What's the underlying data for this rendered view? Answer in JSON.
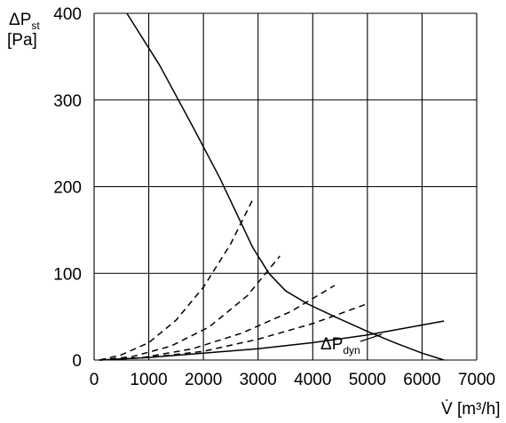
{
  "chart_data": {
    "type": "line",
    "xlabel": "V̇ [m³/h]",
    "ylabel": {
      "main": "ΔP",
      "sub": "st",
      "unit": "[Pa]"
    },
    "xlim": [
      0,
      7000
    ],
    "ylim": [
      0,
      400
    ],
    "x_ticks": [
      0,
      1000,
      2000,
      3000,
      4000,
      5000,
      6000,
      7000
    ],
    "y_ticks": [
      0,
      100,
      200,
      300,
      400
    ],
    "grid": true,
    "legend": "none",
    "colors": {
      "line": "#000000",
      "grid": "#000000",
      "background": "#ffffff"
    },
    "series": [
      {
        "style": "solid",
        "x": [
          600,
          1200,
          1800,
          2300,
          2600,
          2900,
          3200,
          3500,
          3900,
          4400,
          5000,
          5500,
          6000,
          6400
        ],
        "y": [
          400,
          340,
          270,
          210,
          170,
          130,
          100,
          80,
          65,
          50,
          33,
          20,
          8,
          0
        ]
      },
      {
        "style": "dashed",
        "x": [
          100,
          500,
          1000,
          1500,
          2000,
          2500,
          2900
        ],
        "y": [
          0,
          6,
          20,
          46,
          84,
          134,
          185
        ]
      },
      {
        "style": "dashed",
        "x": [
          100,
          700,
          1400,
          2100,
          2800,
          3400
        ],
        "y": [
          0,
          4,
          16,
          38,
          74,
          120
        ]
      },
      {
        "style": "dashed",
        "x": [
          100,
          900,
          1800,
          2700,
          3600,
          4400
        ],
        "y": [
          0,
          3,
          13,
          31,
          56,
          86
        ]
      },
      {
        "style": "dashed",
        "x": [
          100,
          1000,
          2000,
          3000,
          4000,
          5000
        ],
        "y": [
          0,
          3,
          10,
          24,
          42,
          65
        ]
      },
      {
        "style": "solid",
        "x": [
          100,
          1000,
          2000,
          3000,
          4000,
          5000,
          6400
        ],
        "y": [
          0,
          3,
          8,
          13,
          20,
          29,
          45
        ]
      }
    ],
    "annotations": [
      {
        "main": "ΔP",
        "sub": "dyn",
        "x": 4150,
        "y": 18
      }
    ]
  }
}
